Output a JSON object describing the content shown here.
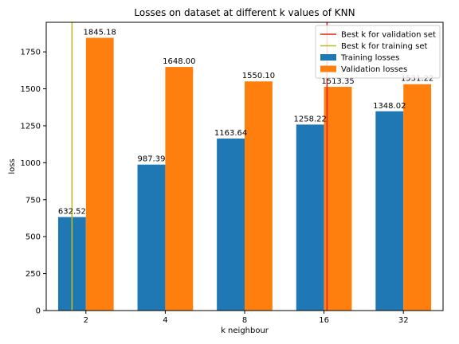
{
  "chart_data": {
    "type": "bar",
    "title": "Losses on dataset at different k values of KNN",
    "xlabel": "k neighbour",
    "ylabel": "loss",
    "categories": [
      "2",
      "4",
      "8",
      "16",
      "32"
    ],
    "series": [
      {
        "name": "Training losses",
        "color": "#1f77b4",
        "values": [
          632.52,
          987.39,
          1163.64,
          1258.22,
          1348.02
        ],
        "labels": [
          "632.52",
          "987.39",
          "1163.64",
          "1258.22",
          "1348.02"
        ]
      },
      {
        "name": "Validation losses",
        "color": "#ff7f0e",
        "values": [
          1845.18,
          1648.0,
          1550.1,
          1513.35,
          1531.22
        ],
        "labels": [
          "1845.18",
          "1648.00",
          "1550.10",
          "1513.35",
          "1531.22"
        ]
      }
    ],
    "vlines": [
      {
        "name": "Best k for validation set",
        "color": "#e8241c",
        "x": 16.5
      },
      {
        "name": "Best k for training set",
        "color": "#bcbd22",
        "x": 2
      }
    ],
    "ylim": [
      0,
      1950
    ],
    "yticks": [
      0,
      250,
      500,
      750,
      1000,
      1250,
      1500,
      1750
    ],
    "yticklabels": [
      "0",
      "250",
      "500",
      "750",
      "1000",
      "1250",
      "1500",
      "1750"
    ],
    "legend_position": "top-right",
    "grid": false
  }
}
